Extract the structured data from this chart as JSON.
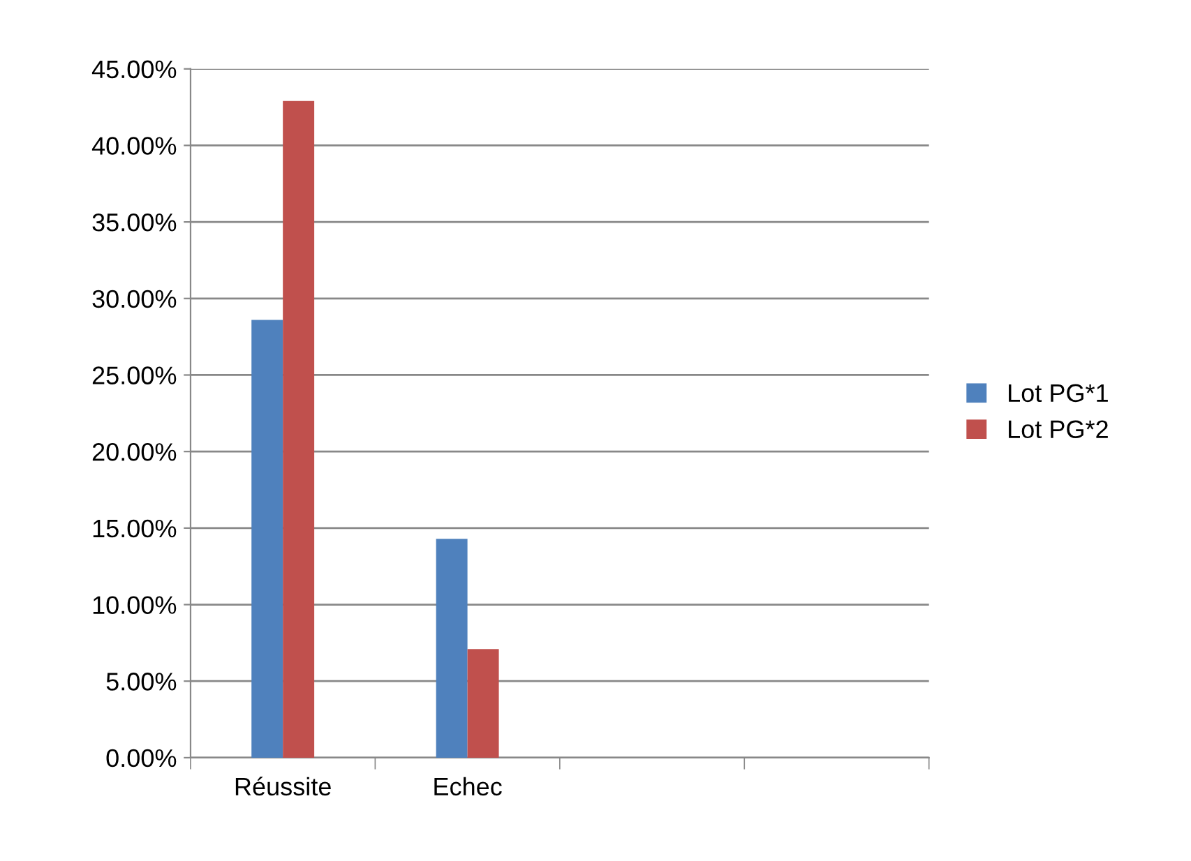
{
  "chart_data": {
    "type": "bar",
    "categories": [
      "Réussite",
      "Echec",
      null,
      null
    ],
    "series": [
      {
        "name": "Lot PG*1",
        "color": "#4f81bd",
        "values": [
          28.6,
          14.3,
          null,
          null
        ]
      },
      {
        "name": "Lot PG*2",
        "color": "#c0504d",
        "values": [
          42.9,
          7.1,
          null,
          null
        ]
      }
    ],
    "ylim": [
      0,
      45
    ],
    "yticks": [
      {
        "value": 0,
        "label": "0.00%"
      },
      {
        "value": 5,
        "label": "5.00%"
      },
      {
        "value": 10,
        "label": "10.00%"
      },
      {
        "value": 15,
        "label": "15.00%"
      },
      {
        "value": 20,
        "label": "20.00%"
      },
      {
        "value": 25,
        "label": "25.00%"
      },
      {
        "value": 30,
        "label": "30.00%"
      },
      {
        "value": 35,
        "label": "35.00%"
      },
      {
        "value": 40,
        "label": "40.00%"
      },
      {
        "value": 45,
        "label": "45.00%"
      }
    ],
    "grid": "y",
    "legend": "right"
  }
}
